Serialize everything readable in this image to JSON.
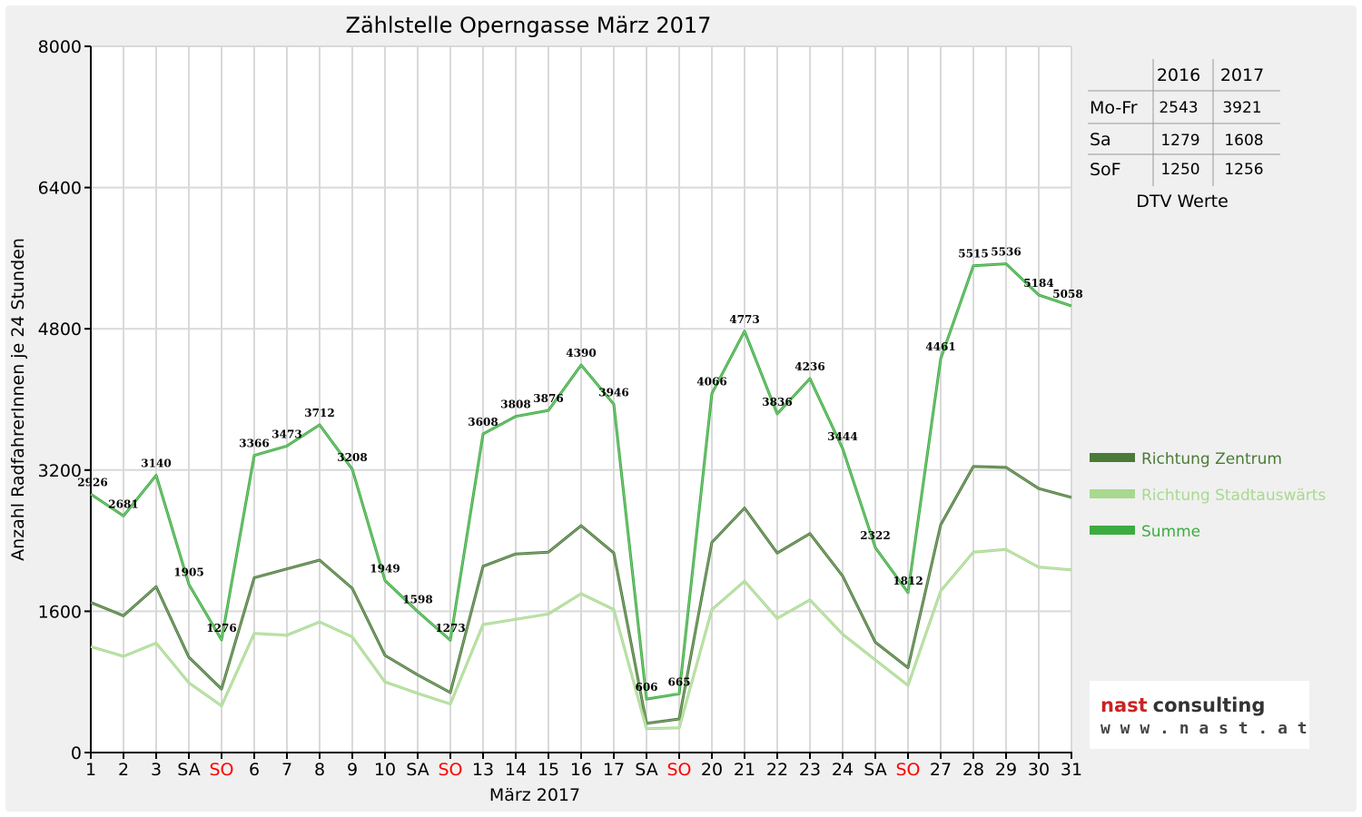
{
  "chart_data": {
    "type": "line",
    "title": "Zählstelle Operngasse März 2017",
    "xlabel": "März 2017",
    "ylabel": "Anzahl RadfahrerInnen je 24 Stunden",
    "ylim": [
      0,
      8000
    ],
    "yticks": [
      "0",
      "1600",
      "3200",
      "4800",
      "6400",
      "8000"
    ],
    "categories": [
      "1",
      "2",
      "3",
      "SA",
      "SO",
      "6",
      "7",
      "8",
      "9",
      "10",
      "SA",
      "SO",
      "13",
      "14",
      "15",
      "16",
      "17",
      "SA",
      "SO",
      "20",
      "21",
      "22",
      "23",
      "24",
      "SA",
      "SO",
      "27",
      "28",
      "29",
      "30",
      "31"
    ],
    "sunday_label": "SO",
    "grid": true,
    "legend_position": "right",
    "series": [
      {
        "name": "Richtung Zentrum",
        "color": "#4a7a38",
        "values": [
          1700,
          1550,
          1880,
          1080,
          720,
          1980,
          2080,
          2180,
          1860,
          1100,
          880,
          680,
          2110,
          2250,
          2270,
          2570,
          2260,
          330,
          380,
          2380,
          2770,
          2260,
          2480,
          2000,
          1250,
          960,
          2580,
          3240,
          3230,
          2990,
          2890
        ]
      },
      {
        "name": "Richtung Stadtauswärts",
        "color": "#a8d98f",
        "values": [
          1200,
          1090,
          1240,
          790,
          530,
          1350,
          1330,
          1480,
          1310,
          800,
          670,
          550,
          1450,
          1510,
          1570,
          1800,
          1620,
          270,
          280,
          1620,
          1940,
          1520,
          1730,
          1340,
          1050,
          760,
          1830,
          2270,
          2300,
          2100,
          2070
        ]
      },
      {
        "name": "Summe",
        "color": "#3cac40",
        "values": [
          2926,
          2681,
          3140,
          1905,
          1276,
          3366,
          3473,
          3712,
          3208,
          1949,
          1598,
          1273,
          3608,
          3808,
          3876,
          4390,
          3946,
          606,
          665,
          4066,
          4773,
          3836,
          4236,
          3444,
          2322,
          1812,
          4461,
          5515,
          5536,
          5184,
          5058
        ]
      }
    ],
    "data_labels": [
      "2926",
      "2681",
      "3140",
      "1905",
      "1276",
      "3366",
      "3473",
      "3712",
      "3208",
      "1949",
      "1598",
      "1273",
      "3608",
      "3808",
      "3876",
      "4390",
      "3946",
      "606",
      "665",
      "4066",
      "4773",
      "3836",
      "4236",
      "3444",
      "2322",
      "1812",
      "4461",
      "5515",
      "5536",
      "5184",
      "5058"
    ]
  },
  "dtv_table": {
    "col_headers": [
      "2016",
      "2017"
    ],
    "rows": [
      {
        "label": "Mo-Fr",
        "v2016": "2543",
        "v2017": "3921"
      },
      {
        "label": "Sa",
        "v2016": "1279",
        "v2017": "1608"
      },
      {
        "label": "SoF",
        "v2016": "1250",
        "v2017": "1256"
      }
    ],
    "caption": "DTV Werte"
  },
  "logo": {
    "word1": "nast",
    "word2": "consulting",
    "url": "w w w . n a s t . a t",
    "color_red": "#cc2222",
    "color_dark": "#333333"
  }
}
